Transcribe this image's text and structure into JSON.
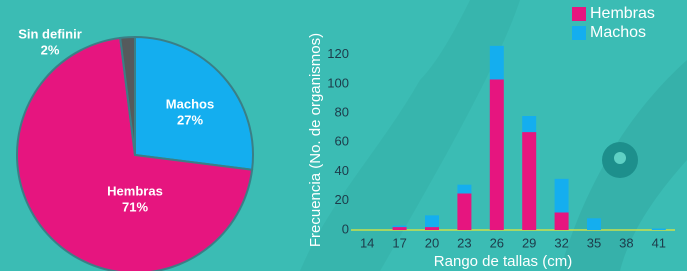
{
  "chart_data": [
    {
      "type": "pie",
      "categories": [
        "Machos",
        "Hembras",
        "Sin definir"
      ],
      "values": [
        27,
        71,
        2
      ],
      "value_labels": [
        "27%",
        "71%",
        "2%"
      ],
      "colors": [
        "#14aeef",
        "#e6157f",
        "#555a5c"
      ]
    },
    {
      "type": "bar",
      "stacked": true,
      "x_label": "Rango de tallas (cm)",
      "y_label": "Frecuencia (No. de organismos)",
      "categories": [
        "14",
        "17",
        "20",
        "23",
        "26",
        "29",
        "32",
        "35",
        "38",
        "41"
      ],
      "series": [
        {
          "name": "Hembras",
          "color": "#e6157f",
          "values": [
            0,
            2,
            2,
            25,
            103,
            67,
            12,
            0,
            0,
            0
          ]
        },
        {
          "name": "Machos",
          "color": "#14aeef",
          "values": [
            0,
            1,
            8,
            6,
            23,
            11,
            23,
            8,
            0,
            1
          ]
        }
      ],
      "ylim": [
        0,
        130
      ],
      "yticks": [
        0,
        20,
        40,
        60,
        80,
        100,
        120
      ],
      "legend": "top-right"
    }
  ]
}
